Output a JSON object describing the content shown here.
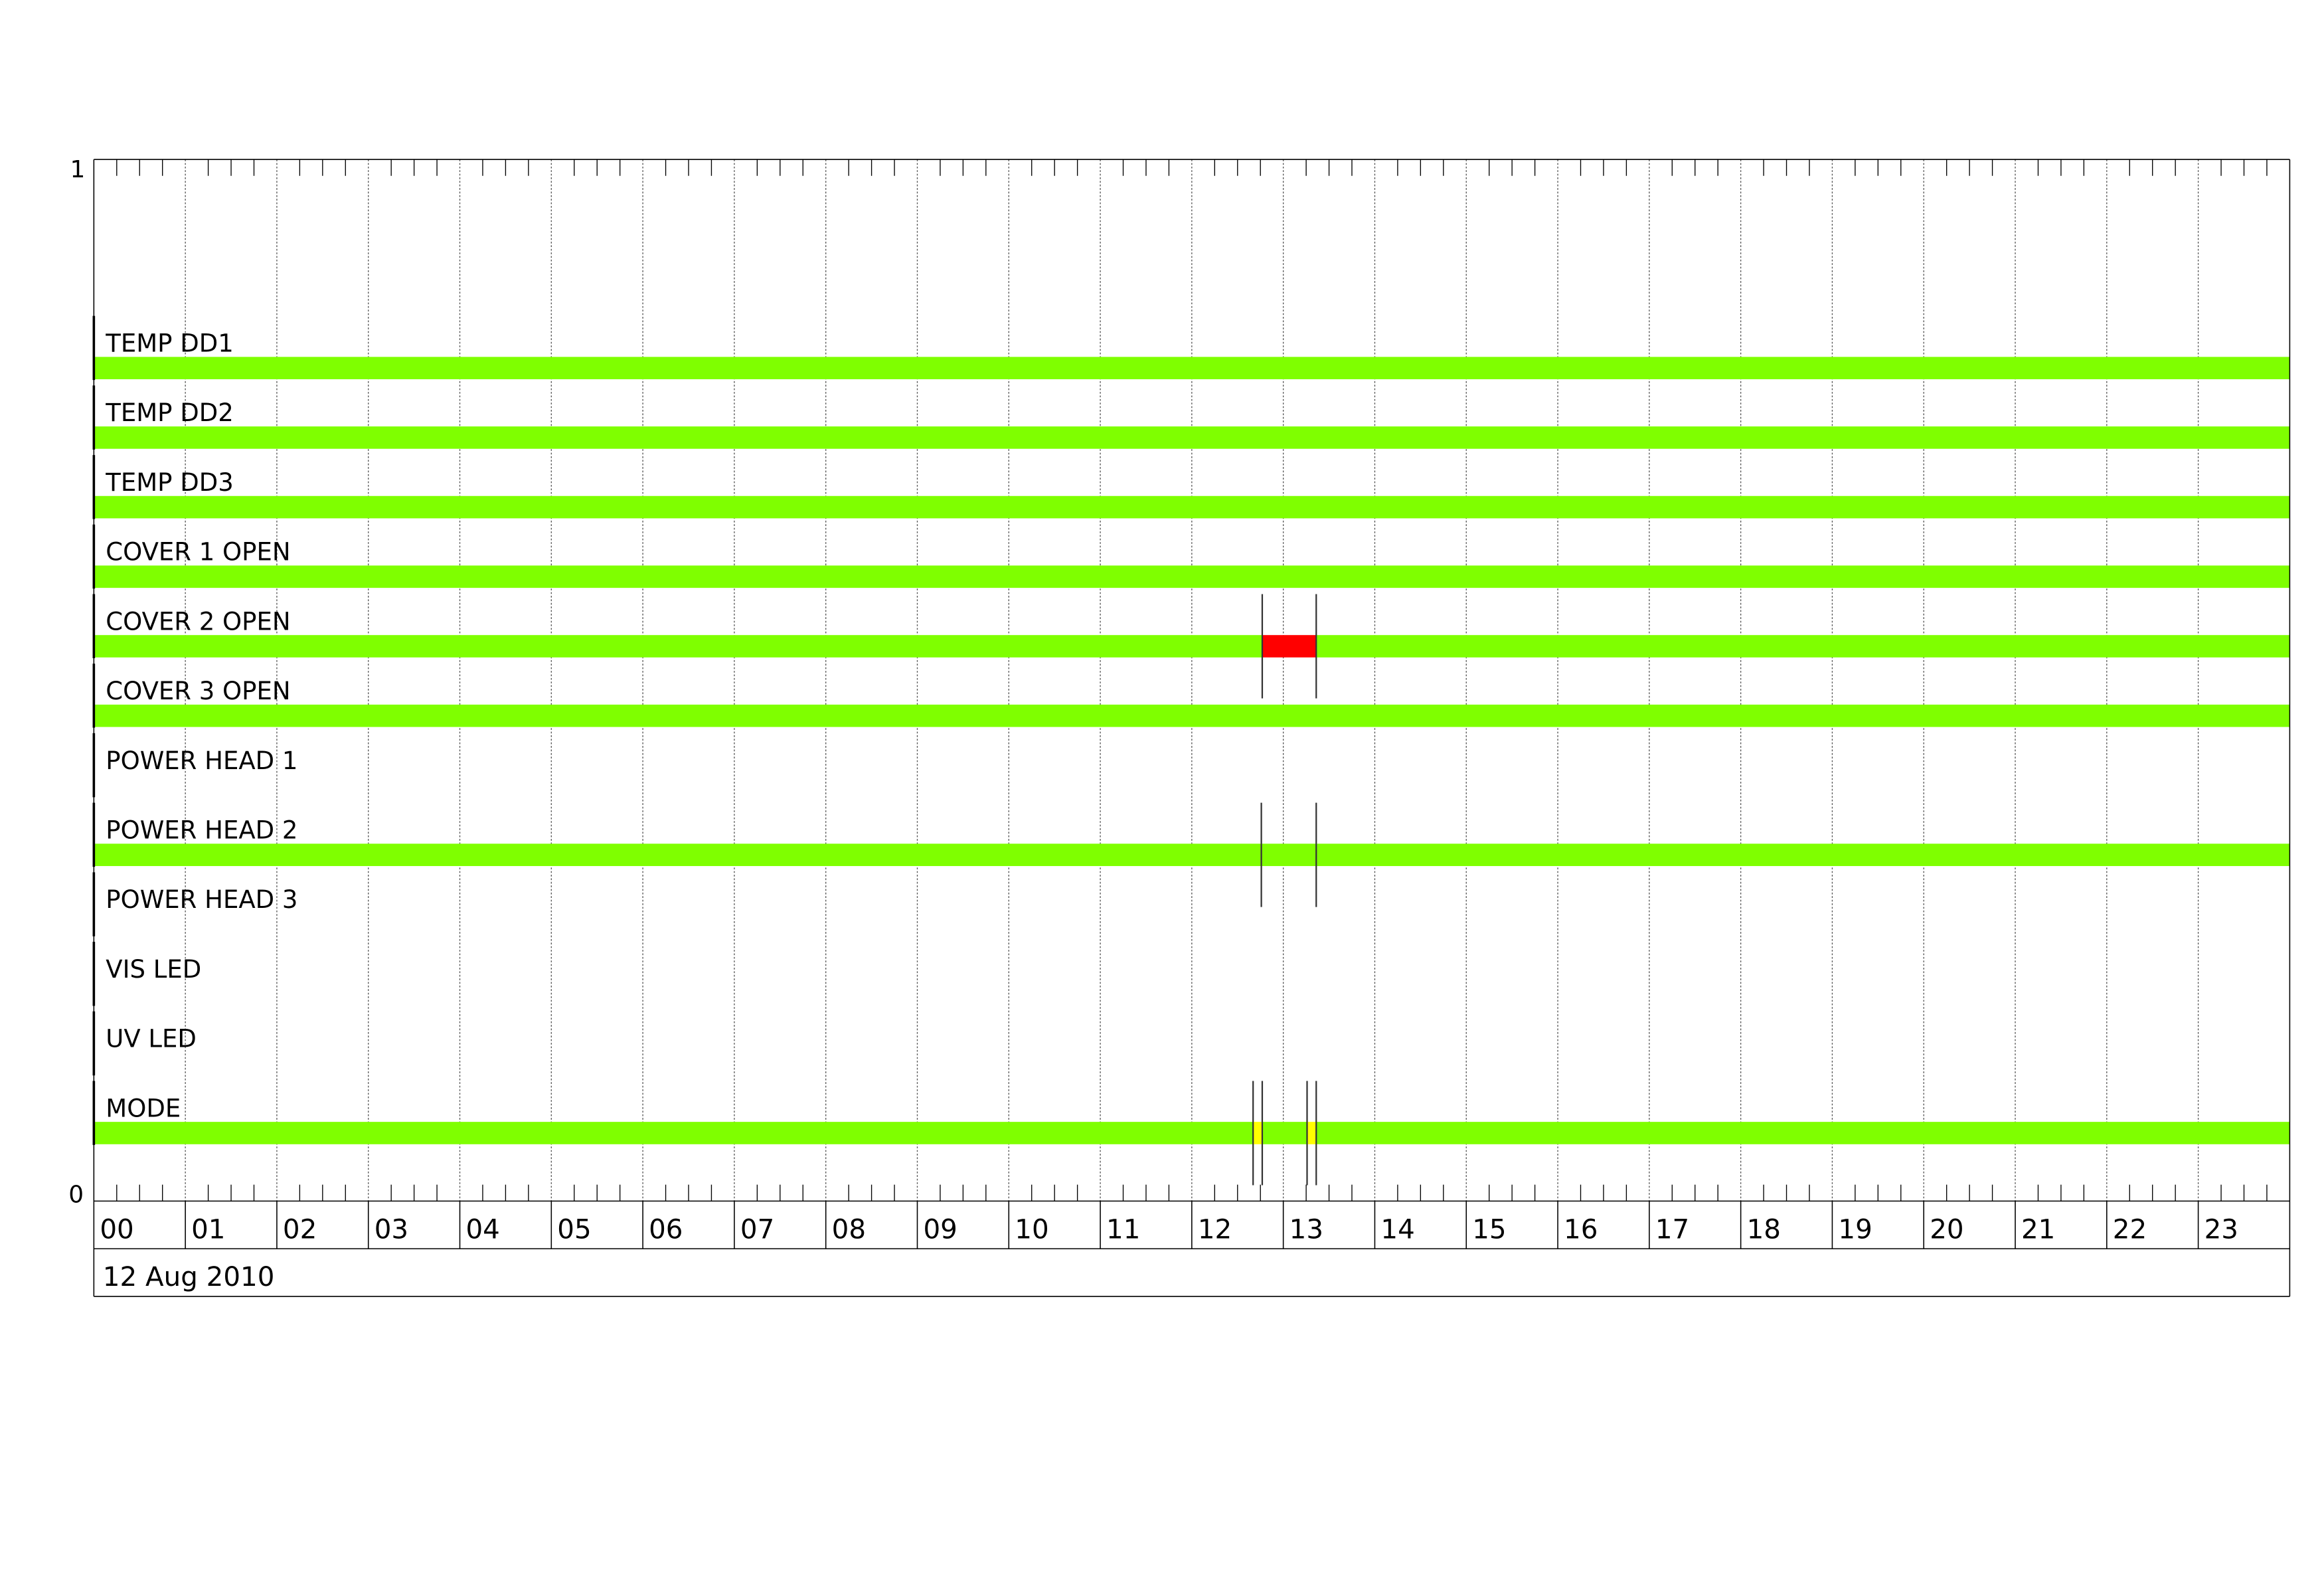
{
  "chart_data": {
    "type": "timeline",
    "y_axis": {
      "top_label": "1",
      "bottom_label": "0",
      "ylim": [
        0,
        1
      ]
    },
    "x_axis": {
      "unit": "hour",
      "xlim": [
        0,
        24
      ],
      "tick_labels": [
        "00",
        "01",
        "02",
        "03",
        "04",
        "05",
        "06",
        "07",
        "08",
        "09",
        "10",
        "11",
        "12",
        "13",
        "14",
        "15",
        "16",
        "17",
        "18",
        "19",
        "20",
        "21",
        "22",
        "23"
      ],
      "minor_ticks_per_hour": 4,
      "date_label": "12 Aug 2010"
    },
    "grid": true,
    "colors": {
      "ok": "#7fff00",
      "alarm": "#ff0000",
      "warning": "#ffff00"
    },
    "rows": [
      {
        "label": "TEMP  DD1",
        "segments": [
          {
            "start": 0,
            "end": 24,
            "state": "ok"
          }
        ]
      },
      {
        "label": "TEMP  DD2",
        "segments": [
          {
            "start": 0,
            "end": 24,
            "state": "ok"
          }
        ]
      },
      {
        "label": "TEMP  DD3",
        "segments": [
          {
            "start": 0,
            "end": 24,
            "state": "ok"
          }
        ]
      },
      {
        "label": "COVER  1  OPEN",
        "segments": [
          {
            "start": 0,
            "end": 24,
            "state": "ok"
          }
        ]
      },
      {
        "label": "COVER  2  OPEN",
        "segments": [
          {
            "start": 0,
            "end": 12.77,
            "state": "ok"
          },
          {
            "start": 12.77,
            "end": 13.36,
            "state": "alarm"
          },
          {
            "start": 13.36,
            "end": 24,
            "state": "ok"
          }
        ],
        "markers": [
          12.77,
          13.36
        ]
      },
      {
        "label": "COVER  3  OPEN",
        "segments": [
          {
            "start": 0,
            "end": 24,
            "state": "ok"
          }
        ]
      },
      {
        "label": "POWER  HEAD  1",
        "segments": []
      },
      {
        "label": "POWER  HEAD  2",
        "segments": [
          {
            "start": 0,
            "end": 12.77,
            "state": "ok"
          },
          {
            "start": 12.77,
            "end": 13.36,
            "state": "ok"
          },
          {
            "start": 13.36,
            "end": 24,
            "state": "ok"
          }
        ],
        "markers": [
          12.76,
          13.36
        ]
      },
      {
        "label": "POWER  HEAD  3",
        "segments": []
      },
      {
        "label": "VIS  LED",
        "segments": []
      },
      {
        "label": "UV  LED",
        "segments": []
      },
      {
        "label": "MODE",
        "segments": [
          {
            "start": 0,
            "end": 12.67,
            "state": "ok"
          },
          {
            "start": 12.67,
            "end": 12.77,
            "state": "warning"
          },
          {
            "start": 12.77,
            "end": 13.26,
            "state": "ok"
          },
          {
            "start": 13.26,
            "end": 13.36,
            "state": "warning"
          },
          {
            "start": 13.36,
            "end": 24,
            "state": "ok"
          }
        ],
        "markers": [
          12.67,
          12.77,
          13.26,
          13.36
        ]
      }
    ]
  }
}
